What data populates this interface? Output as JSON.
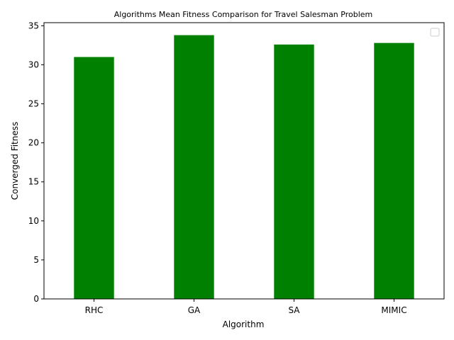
{
  "chart_data": {
    "type": "bar",
    "title": "Algorithms Mean Fitness Comparison for Travel Salesman Problem",
    "xlabel": "Algorithm",
    "ylabel": "Converged Fitness",
    "categories": [
      "RHC",
      "GA",
      "SA",
      "MIMIC"
    ],
    "values": [
      31.0,
      33.8,
      32.6,
      32.8
    ],
    "ylim": [
      0,
      35.4
    ],
    "yticks": [
      0,
      5,
      10,
      15,
      20,
      25,
      30,
      35
    ],
    "bar_color": "#008000",
    "grid": false,
    "legend": {
      "placement": "upper right",
      "entries": []
    }
  }
}
